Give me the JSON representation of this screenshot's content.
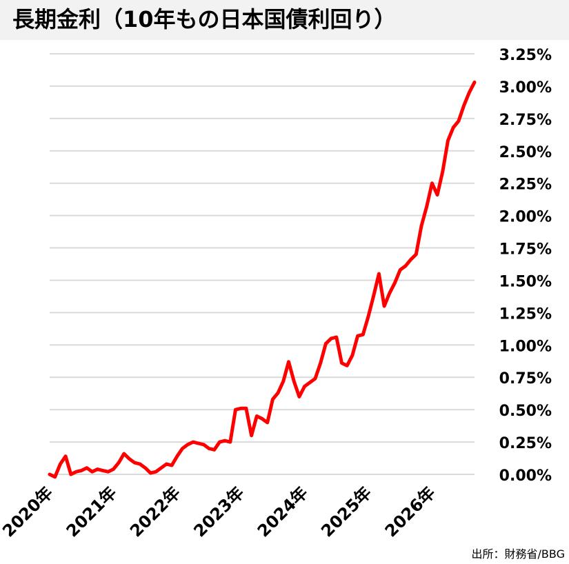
{
  "chart_data": {
    "type": "line",
    "title": "長期金利（10年もの日本国債利回り）",
    "source": "出所：財務省/BBG",
    "xlabel": "",
    "ylabel": "",
    "ylim": [
      0,
      3.25
    ],
    "y_ticks": [
      "0.00%",
      "0.25%",
      "0.50%",
      "0.75%",
      "1.00%",
      "1.25%",
      "1.50%",
      "1.75%",
      "2.00%",
      "2.25%",
      "2.50%",
      "2.75%",
      "3.00%",
      "3.25%"
    ],
    "x_tick_labels": [
      "2020年",
      "2021年",
      "2022年",
      "2023年",
      "2024年",
      "2025年",
      "2026年"
    ],
    "x_range": [
      "2020-01",
      "2026-09"
    ],
    "grid": true,
    "legend": "none",
    "line_color": "#ff0000",
    "series": [
      {
        "x": [
          "2020-01",
          "2020-02",
          "2020-03",
          "2020-04",
          "2020-05",
          "2020-06",
          "2020-07",
          "2020-08",
          "2020-09",
          "2020-10",
          "2020-11",
          "2020-12",
          "2021-01",
          "2021-02",
          "2021-03",
          "2021-04",
          "2021-05",
          "2021-06",
          "2021-07",
          "2021-08",
          "2021-09",
          "2021-10",
          "2021-11",
          "2021-12",
          "2022-01",
          "2022-02",
          "2022-03",
          "2022-04",
          "2022-05",
          "2022-06",
          "2022-07",
          "2022-08",
          "2022-09",
          "2022-10",
          "2022-11",
          "2022-12",
          "2023-01",
          "2023-02",
          "2023-03",
          "2023-04",
          "2023-05",
          "2023-06",
          "2023-07",
          "2023-08",
          "2023-09",
          "2023-10",
          "2023-11",
          "2023-12",
          "2024-01",
          "2024-02",
          "2024-03",
          "2024-04",
          "2024-05",
          "2024-06",
          "2024-07",
          "2024-08",
          "2024-09",
          "2024-10",
          "2024-11",
          "2024-12",
          "2025-01",
          "2025-02",
          "2025-03",
          "2025-04",
          "2025-05",
          "2025-06",
          "2025-07",
          "2025-08",
          "2025-09",
          "2025-10",
          "2025-11",
          "2025-12",
          "2026-01",
          "2026-02",
          "2026-03",
          "2026-04",
          "2026-05",
          "2026-06",
          "2026-07",
          "2026-08",
          "2026-09"
        ],
        "values": [
          0.0,
          -0.02,
          0.08,
          0.14,
          0.0,
          0.02,
          0.03,
          0.05,
          0.02,
          0.04,
          0.03,
          0.02,
          0.04,
          0.09,
          0.16,
          0.12,
          0.09,
          0.08,
          0.05,
          0.01,
          0.02,
          0.05,
          0.08,
          0.07,
          0.14,
          0.2,
          0.23,
          0.25,
          0.24,
          0.23,
          0.2,
          0.19,
          0.25,
          0.26,
          0.25,
          0.5,
          0.51,
          0.51,
          0.3,
          0.45,
          0.43,
          0.4,
          0.58,
          0.63,
          0.72,
          0.87,
          0.72,
          0.6,
          0.68,
          0.71,
          0.74,
          0.86,
          1.01,
          1.05,
          1.06,
          0.86,
          0.84,
          0.92,
          1.07,
          1.08,
          1.22,
          1.38,
          1.55,
          1.3,
          1.4,
          1.48,
          1.58,
          1.61,
          1.66,
          1.7,
          1.92,
          2.07,
          2.25,
          2.16,
          2.34,
          2.58,
          2.68,
          2.73,
          2.85,
          2.95,
          3.03
        ]
      }
    ]
  }
}
